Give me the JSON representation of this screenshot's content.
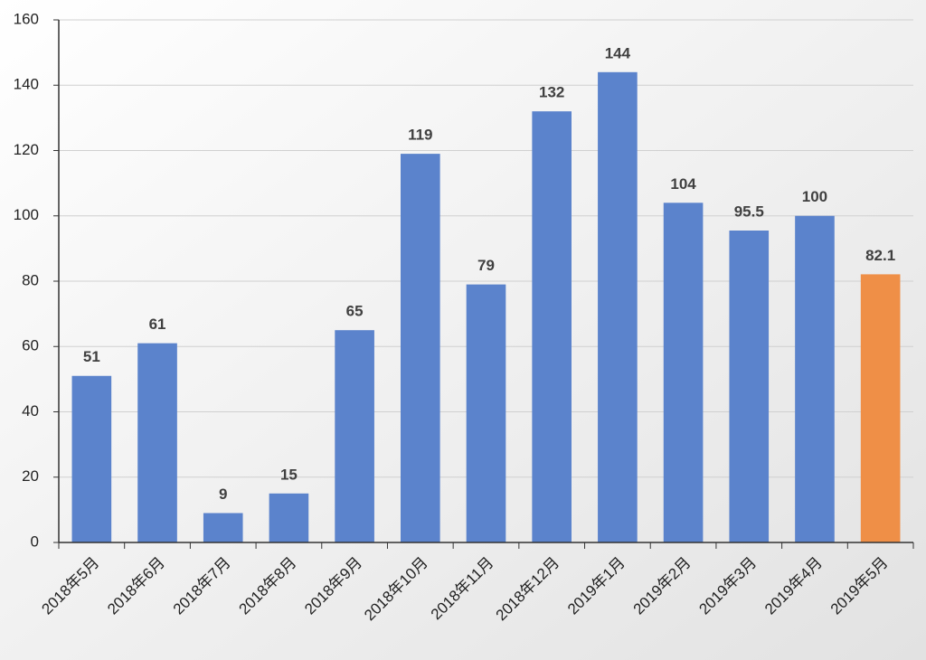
{
  "chart_data": {
    "type": "bar",
    "categories": [
      "2018年5月",
      "2018年6月",
      "2018年7月",
      "2018年8月",
      "2018年9月",
      "2018年10月",
      "2018年11月",
      "2018年12月",
      "2019年1月",
      "2019年2月",
      "2019年3月",
      "2019年4月",
      "2019年5月"
    ],
    "values": [
      51,
      61,
      9,
      15,
      65,
      119,
      79,
      132,
      144,
      104,
      95.5,
      100,
      82.1
    ],
    "colors": [
      "#5b83cc",
      "#5b83cc",
      "#5b83cc",
      "#5b83cc",
      "#5b83cc",
      "#5b83cc",
      "#5b83cc",
      "#5b83cc",
      "#5b83cc",
      "#5b83cc",
      "#5b83cc",
      "#5b83cc",
      "#ef8f47"
    ],
    "ylim": [
      0,
      160
    ],
    "yticks": [
      0,
      20,
      40,
      60,
      80,
      100,
      120,
      140,
      160
    ],
    "grid": true
  }
}
